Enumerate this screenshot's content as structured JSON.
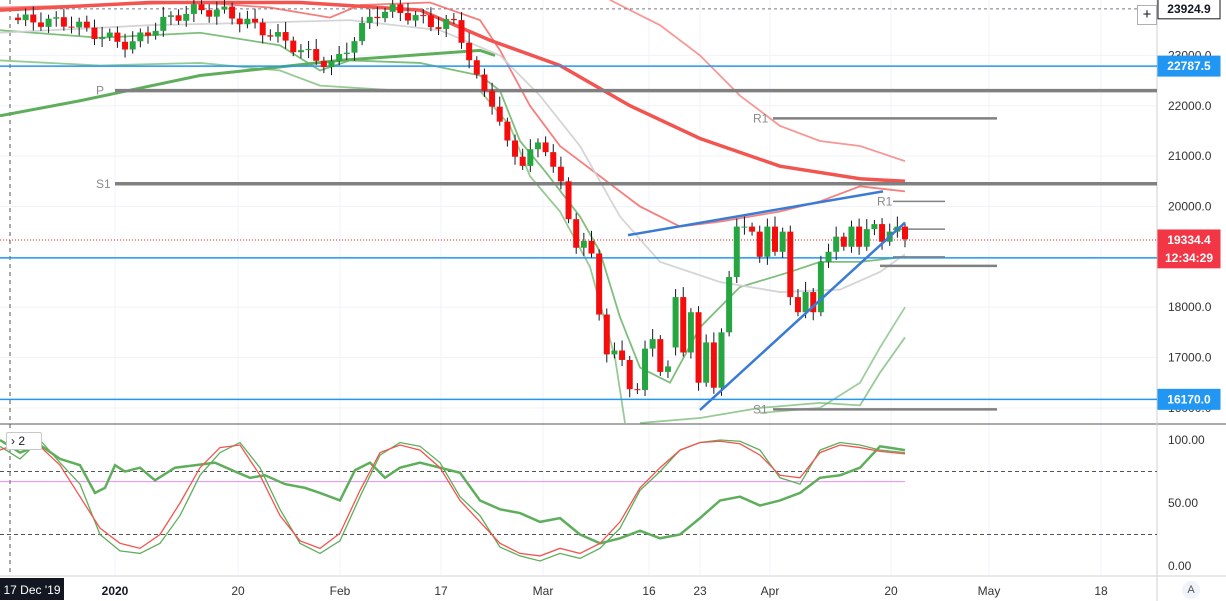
{
  "chart_data": {
    "type": "candlestick",
    "price_axis": {
      "ticks": [
        {
          "value": 16000,
          "label": "16000.0"
        },
        {
          "value": 17000,
          "label": "17000.0"
        },
        {
          "value": 18000,
          "label": "18000.0"
        },
        {
          "value": 20000,
          "label": "20000.0"
        },
        {
          "value": 21000,
          "label": "21000.0"
        },
        {
          "value": 22000,
          "label": "22000.0"
        },
        {
          "value": 23000,
          "label": "23000.0"
        }
      ],
      "range": [
        15700,
        24100
      ]
    },
    "price_badges": [
      {
        "value": 23924.9,
        "label": "23924.9",
        "bg": "#ffffff",
        "fg": "#131722",
        "border": "#131722"
      },
      {
        "value": 22787.5,
        "label": "22787.5",
        "bg": "#2196f3",
        "fg": "#ffffff"
      },
      {
        "value": 19334.4,
        "label": "19334.4",
        "bg": "#f23645",
        "fg": "#ffffff"
      },
      {
        "value": 18980,
        "label": "12:34:29",
        "bg": "#f23645",
        "fg": "#ffffff"
      },
      {
        "value": 16170.0,
        "label": "16170.0",
        "bg": "#2196f3",
        "fg": "#ffffff"
      }
    ],
    "time_axis": [
      {
        "label": "2020",
        "bold": true
      },
      {
        "label": "20"
      },
      {
        "label": "Feb"
      },
      {
        "label": "17"
      },
      {
        "label": "Mar"
      },
      {
        "label": "16"
      },
      {
        "label": "23"
      },
      {
        "label": "Apr"
      },
      {
        "label": "20"
      },
      {
        "label": "May"
      },
      {
        "label": "18"
      }
    ],
    "crosshair_date": "17 Dec '19",
    "horizontal_lines": [
      {
        "value": 22787.5,
        "color": "#2196f3"
      },
      {
        "value": 18980,
        "color": "#2196f3"
      },
      {
        "value": 16170.0,
        "color": "#2196f3"
      }
    ],
    "pivots": [
      {
        "label": "P",
        "value": 22300
      },
      {
        "label": "S1",
        "value": 20450
      },
      {
        "label": "R1",
        "value": 21750
      },
      {
        "label": "R1",
        "value": 20100
      },
      {
        "label": "S1",
        "value": 15970
      }
    ],
    "last_price": 19334.4,
    "stochastic": {
      "ticks": [
        {
          "value": 0,
          "label": "0.00"
        },
        {
          "value": 50,
          "label": "50.00"
        },
        {
          "value": 100,
          "label": "100.00"
        }
      ],
      "levels": [
        75,
        25
      ],
      "extra_level": 67,
      "collapse_label": "2"
    },
    "colors": {
      "up": "#26a641",
      "down": "#f50d0d",
      "ma_red": "#f25450",
      "ma_green": "#5fae5c",
      "trend": "#3a7bd5",
      "pivot": "#808080"
    }
  },
  "controls": {
    "plus_icon": "plus-icon",
    "auto_scale": "A"
  }
}
